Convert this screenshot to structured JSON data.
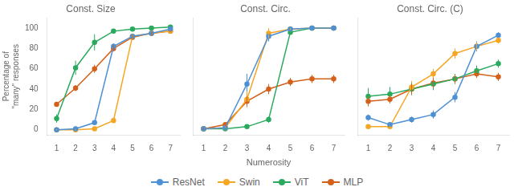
{
  "chart_data": [
    {
      "type": "line",
      "title": "Const. Size",
      "ylabel": "Percentage of\n\"many\" responses",
      "x": [
        1,
        2,
        3,
        4,
        5,
        6,
        7
      ],
      "xlim": [
        0.5,
        7.5
      ],
      "xticks": [
        1,
        2,
        3,
        4,
        5,
        6,
        7
      ],
      "ylim": [
        -5,
        110
      ],
      "yticks": [
        0,
        20,
        40,
        60,
        80,
        100
      ],
      "grid": false,
      "marker": "circle",
      "series": [
        {
          "name": "ResNet",
          "color": "#4d90d4",
          "values": [
            0,
            1,
            7,
            82,
            92,
            95,
            99
          ],
          "yerr": [
            0.5,
            0.5,
            2,
            3,
            2,
            2,
            1
          ]
        },
        {
          "name": "Swin",
          "color": "#f5a623",
          "values": [
            0,
            0,
            1,
            9,
            92,
            95,
            97
          ],
          "yerr": [
            0.5,
            0.5,
            1,
            2,
            2,
            2,
            1
          ]
        },
        {
          "name": "ViT",
          "color": "#2aaa5e",
          "values": [
            11,
            61,
            86,
            97,
            99,
            100,
            101
          ],
          "yerr": [
            4,
            7,
            8,
            2,
            1,
            0,
            0
          ]
        },
        {
          "name": "MLP",
          "color": "#d4601a",
          "values": [
            25,
            41,
            60,
            80,
            91,
            95,
            97
          ],
          "yerr": [
            2,
            3,
            4,
            3,
            2,
            2,
            1
          ]
        }
      ]
    },
    {
      "type": "line",
      "title": "Const. Circ.",
      "xlabel": "Numerosity",
      "x": [
        1,
        2,
        3,
        4,
        5,
        6,
        7
      ],
      "xlim": [
        0.5,
        7.5
      ],
      "xticks": [
        1,
        2,
        3,
        4,
        5,
        6,
        7
      ],
      "ylim": [
        -5,
        110
      ],
      "yticks": [
        0,
        20,
        40,
        60,
        80,
        100
      ],
      "grid": false,
      "marker": "circle",
      "tick_labels": "x",
      "legend": "bottom",
      "series": [
        {
          "name": "ResNet",
          "color": "#4d90d4",
          "values": [
            1,
            2,
            45,
            92,
            99,
            100,
            100
          ],
          "yerr": [
            1,
            1,
            10,
            5,
            1,
            0,
            0
          ]
        },
        {
          "name": "Swin",
          "color": "#f5a623",
          "values": [
            1,
            2,
            30,
            95,
            99,
            100,
            100
          ],
          "yerr": [
            1,
            1,
            8,
            5,
            1,
            0,
            0
          ]
        },
        {
          "name": "ViT",
          "color": "#2aaa5e",
          "values": [
            1,
            1,
            3,
            10,
            96,
            100,
            100
          ],
          "yerr": [
            1,
            1,
            1,
            3,
            2,
            0,
            0
          ]
        },
        {
          "name": "MLP",
          "color": "#d4601a",
          "values": [
            1,
            5,
            28,
            40,
            47,
            50,
            50
          ],
          "yerr": [
            1,
            2,
            5,
            5,
            4,
            4,
            4
          ]
        }
      ]
    },
    {
      "type": "line",
      "title": "Const. Circ. (C)",
      "x": [
        1,
        2,
        3,
        4,
        5,
        6,
        7
      ],
      "xlim": [
        0.5,
        7.5
      ],
      "xticks": [
        1,
        2,
        3,
        4,
        5,
        6,
        7
      ],
      "ylim": [
        -5,
        110
      ],
      "yticks": [
        0,
        20,
        40,
        60,
        80,
        100
      ],
      "grid": false,
      "marker": "circle",
      "tick_labels": "x",
      "series": [
        {
          "name": "ResNet",
          "color": "#4d90d4",
          "values": [
            12,
            5,
            10,
            15,
            32,
            82,
            93
          ],
          "yerr": [
            3,
            1,
            3,
            4,
            5,
            5,
            3
          ]
        },
        {
          "name": "Swin",
          "color": "#f5a623",
          "values": [
            3,
            3,
            42,
            55,
            75,
            82,
            88
          ],
          "yerr": [
            2,
            1,
            6,
            5,
            5,
            4,
            3
          ]
        },
        {
          "name": "ViT",
          "color": "#2aaa5e",
          "values": [
            33,
            35,
            40,
            45,
            50,
            58,
            65
          ],
          "yerr": [
            8,
            7,
            6,
            6,
            5,
            5,
            4
          ]
        },
        {
          "name": "MLP",
          "color": "#d4601a",
          "values": [
            28,
            30,
            40,
            46,
            50,
            55,
            52
          ],
          "yerr": [
            5,
            4,
            5,
            5,
            4,
            4,
            4
          ]
        }
      ]
    }
  ]
}
